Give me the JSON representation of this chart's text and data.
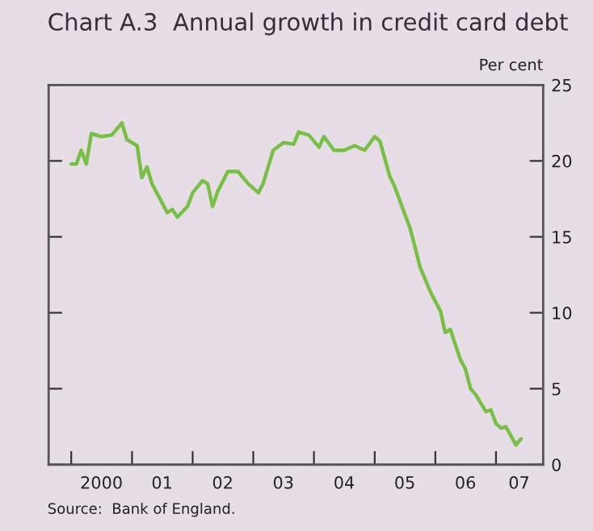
{
  "chart_data": {
    "type": "line",
    "title": "Chart A.3  Annual growth in credit card debt",
    "ylabel": "Per cent",
    "annotations": [
      "Source:  Bank of England."
    ],
    "x": [
      "2000-01",
      "2000-02",
      "2000-03",
      "2000-04",
      "2000-05",
      "2000-07",
      "2000-09",
      "2000-11",
      "2000-12",
      "2001-02",
      "2001-03",
      "2001-04",
      "2001-05",
      "2001-08",
      "2001-09",
      "2001-10",
      "2001-12",
      "2002-01",
      "2002-03",
      "2002-04",
      "2002-05",
      "2002-06",
      "2002-08",
      "2002-10",
      "2002-12",
      "2003-02",
      "2003-03",
      "2003-05",
      "2003-07",
      "2003-09",
      "2003-10",
      "2003-12",
      "2004-02",
      "2004-03",
      "2004-05",
      "2004-07",
      "2004-09",
      "2004-11",
      "2005-01",
      "2005-02",
      "2005-04",
      "2005-05",
      "2005-07",
      "2005-08",
      "2005-09",
      "2005-10",
      "2005-12",
      "2006-02",
      "2006-03",
      "2006-04",
      "2006-06",
      "2006-07",
      "2006-08",
      "2006-09",
      "2006-11",
      "2006-12",
      "2007-01",
      "2007-02",
      "2007-03",
      "2007-05",
      "2007-06"
    ],
    "series": [
      {
        "color": "#78c043",
        "values": [
          19.8,
          19.8,
          20.7,
          19.8,
          21.8,
          21.6,
          21.7,
          22.5,
          21.4,
          21.0,
          18.9,
          19.6,
          18.5,
          16.6,
          16.8,
          16.3,
          17.0,
          17.9,
          18.7,
          18.5,
          17.0,
          18.0,
          19.3,
          19.3,
          18.5,
          17.9,
          18.5,
          20.7,
          21.2,
          21.1,
          21.9,
          21.7,
          20.9,
          21.6,
          20.7,
          20.7,
          21.0,
          20.7,
          21.6,
          21.3,
          19.0,
          18.3,
          16.5,
          15.6,
          14.3,
          13.0,
          11.4,
          10.1,
          8.7,
          8.9,
          6.9,
          6.3,
          5.0,
          4.6,
          3.5,
          3.6,
          2.7,
          2.4,
          2.5,
          1.3,
          1.7
        ]
      }
    ],
    "xlim": [
      "1999-08-18",
      "2007-10-12"
    ],
    "xticks": [
      {
        "value": "2000-01-01",
        "label": null
      },
      {
        "value": "2000-07-01",
        "label": "2000"
      },
      {
        "value": "2001-01-01",
        "label": null
      },
      {
        "value": "2001-07-01",
        "label": "01"
      },
      {
        "value": "2002-01-01",
        "label": null
      },
      {
        "value": "2002-07-01",
        "label": "02"
      },
      {
        "value": "2003-01-01",
        "label": null
      },
      {
        "value": "2003-07-01",
        "label": "03"
      },
      {
        "value": "2004-01-01",
        "label": null
      },
      {
        "value": "2004-07-01",
        "label": "04"
      },
      {
        "value": "2005-01-01",
        "label": null
      },
      {
        "value": "2005-07-01",
        "label": "05"
      },
      {
        "value": "2006-01-01",
        "label": null
      },
      {
        "value": "2006-07-01",
        "label": "06"
      },
      {
        "value": "2007-01-01",
        "label": null
      },
      {
        "value": "2007-05-20",
        "label": "07"
      }
    ],
    "ylim": [
      0,
      25
    ],
    "yticks": [
      0,
      5,
      10,
      15,
      20,
      25
    ],
    "grid": false,
    "legend": false,
    "marker": "none",
    "line_style": "solid"
  }
}
